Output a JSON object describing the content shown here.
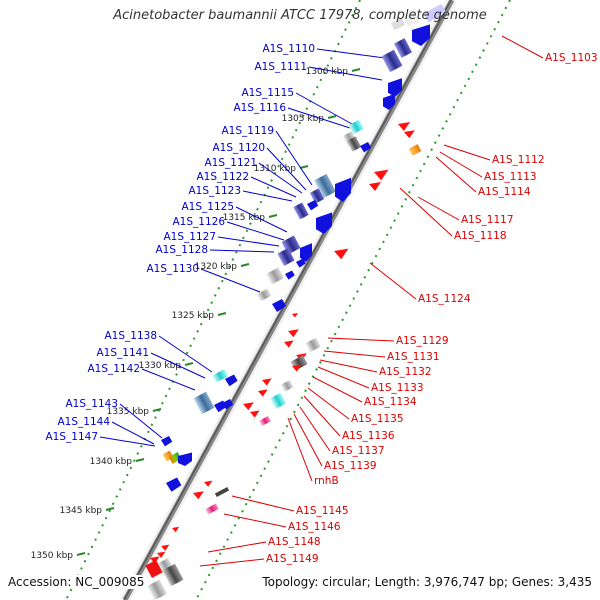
{
  "title": "Acinetobacter baumannii ATCC 17978, complete genome",
  "footer": {
    "accession_label": "Accession:",
    "accession": "NC_009085",
    "topology_label": "Topology:",
    "topology": "circular",
    "length_label": "Length:",
    "length": "3,976,747 bp",
    "genes_label": "Genes:",
    "genes": "3,435"
  },
  "colors": {
    "forward_label": "#0000cc",
    "reverse_label": "#dd0000",
    "tick_marks": "#339933",
    "backbone": "#777777"
  },
  "ticks": [
    "1300 kbp",
    "1305 kbp",
    "1310 kbp",
    "1315 kbp",
    "1320 kbp",
    "1325 kbp",
    "1330 kbp",
    "1335 kbp",
    "1340 kbp",
    "1345 kbp",
    "1350 kbp"
  ],
  "forward_genes": [
    "A1S_1110",
    "A1S_1111",
    "A1S_1115",
    "A1S_1116",
    "A1S_1119",
    "A1S_1120",
    "A1S_1121",
    "A1S_1122",
    "A1S_1123",
    "A1S_1125",
    "A1S_1126",
    "A1S_1127",
    "A1S_1128",
    "A1S_1130",
    "A1S_1138",
    "A1S_1141",
    "A1S_1142",
    "A1S_1143",
    "A1S_1144",
    "A1S_1147"
  ],
  "reverse_genes": [
    "A1S_1103",
    "A1S_1112",
    "A1S_1113",
    "A1S_1114",
    "A1S_1117",
    "A1S_1118",
    "A1S_1124",
    "A1S_1129",
    "A1S_1131",
    "A1S_1132",
    "A1S_1133",
    "A1S_1134",
    "A1S_1135",
    "A1S_1136",
    "A1S_1137",
    "A1S_1139",
    "rnhB",
    "A1S_1145",
    "A1S_1146",
    "A1S_1148",
    "A1S_1149"
  ]
}
